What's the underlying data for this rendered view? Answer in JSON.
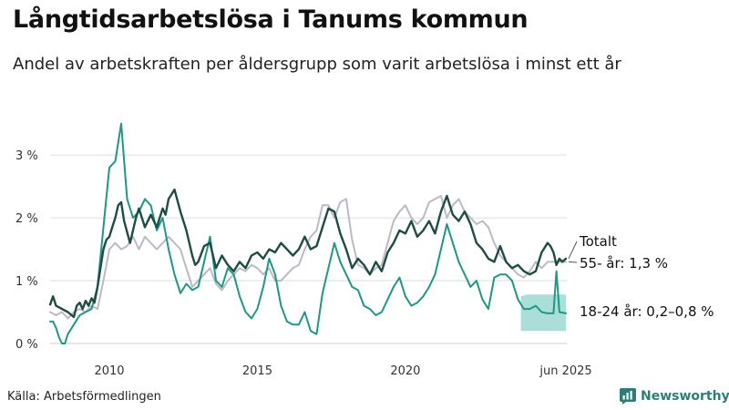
{
  "title": "Långtidsarbetslösa i Tanums kommun",
  "subtitle": "Andel av arbetskraften per åldersgrupp som varit arbetslösa i minst ett år",
  "source": "Källa: Arbetsförmedlingen",
  "brand": "Newsworthy",
  "colors": {
    "totalt": "#1e4d43",
    "age55": "#bdb8c6",
    "age1824": "#1a9a86",
    "band": "#8fd3cb",
    "grid": "#dddddd",
    "brand": "#2a8079"
  },
  "chart_data": {
    "type": "line",
    "ylim": [
      0,
      3.8
    ],
    "xlim": [
      2008.0,
      2025.45
    ],
    "yticks": [
      {
        "value": 0,
        "label": "0 %"
      },
      {
        "value": 1,
        "label": "1 %"
      },
      {
        "value": 2,
        "label": "2 %"
      },
      {
        "value": 3,
        "label": "3 %"
      }
    ],
    "xticks": [
      {
        "value": 2010,
        "label": "2010"
      },
      {
        "value": 2015,
        "label": "2015"
      },
      {
        "value": 2020,
        "label": "2020"
      },
      {
        "value": 2025.42,
        "label": "jun 2025"
      }
    ],
    "grid": true,
    "series": [
      {
        "key": "totalt",
        "name": "Totalt",
        "end_label": "Totalt",
        "x": [
          2008.0,
          2008.1,
          2008.2,
          2008.4,
          2008.6,
          2008.8,
          2008.9,
          2009.0,
          2009.1,
          2009.2,
          2009.3,
          2009.4,
          2009.5,
          2009.6,
          2009.8,
          2009.9,
          2010.0,
          2010.1,
          2010.2,
          2010.3,
          2010.4,
          2010.5,
          2010.7,
          2010.9,
          2011.0,
          2011.2,
          2011.4,
          2011.6,
          2011.8,
          2011.9,
          2012.0,
          2012.2,
          2012.4,
          2012.6,
          2012.8,
          2012.9,
          2013.0,
          2013.2,
          2013.4,
          2013.6,
          2013.8,
          2014.0,
          2014.2,
          2014.4,
          2014.6,
          2014.8,
          2015.0,
          2015.2,
          2015.4,
          2015.6,
          2015.8,
          2016.0,
          2016.2,
          2016.4,
          2016.6,
          2016.8,
          2017.0,
          2017.2,
          2017.4,
          2017.6,
          2017.8,
          2018.0,
          2018.2,
          2018.4,
          2018.6,
          2018.8,
          2019.0,
          2019.2,
          2019.4,
          2019.6,
          2019.8,
          2020.0,
          2020.2,
          2020.4,
          2020.6,
          2020.8,
          2021.0,
          2021.2,
          2021.4,
          2021.6,
          2021.8,
          2022.0,
          2022.2,
          2022.4,
          2022.6,
          2022.8,
          2023.0,
          2023.2,
          2023.4,
          2023.6,
          2023.8,
          2024.0,
          2024.2,
          2024.4,
          2024.6,
          2024.8,
          2024.9,
          2025.0,
          2025.1,
          2025.2,
          2025.3,
          2025.42
        ],
        "y": [
          0.62,
          0.75,
          0.6,
          0.55,
          0.5,
          0.42,
          0.6,
          0.65,
          0.55,
          0.68,
          0.6,
          0.72,
          0.65,
          0.9,
          1.5,
          1.65,
          1.7,
          1.85,
          2.0,
          2.2,
          2.25,
          1.95,
          1.6,
          2.0,
          2.15,
          1.85,
          2.05,
          1.85,
          2.15,
          2.05,
          2.3,
          2.45,
          2.1,
          1.8,
          1.4,
          1.25,
          1.3,
          1.55,
          1.6,
          1.2,
          1.4,
          1.25,
          1.15,
          1.3,
          1.2,
          1.4,
          1.45,
          1.35,
          1.5,
          1.45,
          1.6,
          1.5,
          1.4,
          1.5,
          1.7,
          1.5,
          1.55,
          1.85,
          2.15,
          2.1,
          1.75,
          1.5,
          1.2,
          1.35,
          1.25,
          1.1,
          1.3,
          1.15,
          1.45,
          1.6,
          1.8,
          1.75,
          1.95,
          1.7,
          1.8,
          1.95,
          1.75,
          2.1,
          2.35,
          2.05,
          1.95,
          2.1,
          1.9,
          1.6,
          1.5,
          1.35,
          1.3,
          1.55,
          1.3,
          1.2,
          1.25,
          1.15,
          1.1,
          1.15,
          1.45,
          1.6,
          1.55,
          1.45,
          1.25,
          1.35,
          1.3,
          1.35
        ]
      },
      {
        "key": "age55",
        "name": "55- år",
        "end_label": "55- år: 1,3 %",
        "x": [
          2008.0,
          2008.2,
          2008.4,
          2008.6,
          2008.8,
          2009.0,
          2009.2,
          2009.4,
          2009.6,
          2009.8,
          2010.0,
          2010.2,
          2010.4,
          2010.6,
          2010.8,
          2011.0,
          2011.2,
          2011.4,
          2011.6,
          2011.8,
          2012.0,
          2012.2,
          2012.4,
          2012.6,
          2012.8,
          2013.0,
          2013.2,
          2013.4,
          2013.6,
          2013.8,
          2014.0,
          2014.2,
          2014.4,
          2014.6,
          2014.8,
          2015.0,
          2015.2,
          2015.4,
          2015.6,
          2015.8,
          2016.0,
          2016.2,
          2016.4,
          2016.6,
          2016.8,
          2017.0,
          2017.2,
          2017.4,
          2017.6,
          2017.8,
          2018.0,
          2018.2,
          2018.4,
          2018.6,
          2018.8,
          2019.0,
          2019.2,
          2019.4,
          2019.6,
          2019.8,
          2020.0,
          2020.2,
          2020.4,
          2020.6,
          2020.8,
          2021.0,
          2021.2,
          2021.4,
          2021.6,
          2021.8,
          2022.0,
          2022.2,
          2022.4,
          2022.6,
          2022.8,
          2023.0,
          2023.2,
          2023.4,
          2023.6,
          2023.8,
          2024.0,
          2024.2,
          2024.4,
          2024.6,
          2024.8,
          2025.0,
          2025.2,
          2025.42
        ],
        "y": [
          0.5,
          0.45,
          0.5,
          0.4,
          0.5,
          0.55,
          0.5,
          0.6,
          0.55,
          1.0,
          1.5,
          1.6,
          1.5,
          1.55,
          1.7,
          1.5,
          1.7,
          1.6,
          1.5,
          1.6,
          1.7,
          1.6,
          1.5,
          1.2,
          0.9,
          1.0,
          1.1,
          1.2,
          0.95,
          0.85,
          1.0,
          1.1,
          1.2,
          1.15,
          1.25,
          1.2,
          1.1,
          1.2,
          1.0,
          1.0,
          1.1,
          1.2,
          1.25,
          1.5,
          1.7,
          1.8,
          2.2,
          2.2,
          2.0,
          2.25,
          2.3,
          1.65,
          1.25,
          1.2,
          1.1,
          1.2,
          1.25,
          1.6,
          1.95,
          2.1,
          2.2,
          2.0,
          1.9,
          2.0,
          2.25,
          2.3,
          2.35,
          2.0,
          2.2,
          2.3,
          2.1,
          2.0,
          1.9,
          1.95,
          1.85,
          1.6,
          1.4,
          1.3,
          1.2,
          1.1,
          1.05,
          1.15,
          1.3,
          1.2,
          1.3,
          1.3,
          1.3,
          1.3
        ]
      },
      {
        "key": "age1824",
        "name": "18-24 år",
        "end_label": "18-24 år: 0,2–0,8 %",
        "x": [
          2008.0,
          2008.1,
          2008.2,
          2008.3,
          2008.4,
          2008.5,
          2008.6,
          2008.8,
          2009.0,
          2009.2,
          2009.4,
          2009.6,
          2009.8,
          2010.0,
          2010.2,
          2010.4,
          2010.6,
          2010.8,
          2011.0,
          2011.2,
          2011.4,
          2011.6,
          2011.8,
          2012.0,
          2012.2,
          2012.4,
          2012.6,
          2012.8,
          2013.0,
          2013.2,
          2013.4,
          2013.6,
          2013.8,
          2014.0,
          2014.2,
          2014.4,
          2014.6,
          2014.8,
          2015.0,
          2015.2,
          2015.4,
          2015.6,
          2015.8,
          2016.0,
          2016.2,
          2016.4,
          2016.6,
          2016.8,
          2017.0,
          2017.2,
          2017.4,
          2017.6,
          2017.8,
          2018.0,
          2018.2,
          2018.4,
          2018.6,
          2018.8,
          2019.0,
          2019.2,
          2019.4,
          2019.6,
          2019.8,
          2020.0,
          2020.2,
          2020.4,
          2020.6,
          2020.8,
          2021.0,
          2021.2,
          2021.4,
          2021.6,
          2021.8,
          2022.0,
          2022.2,
          2022.4,
          2022.6,
          2022.8,
          2023.0,
          2023.2,
          2023.4,
          2023.6,
          2023.8,
          2024.0,
          2024.2,
          2024.4,
          2024.6,
          2024.8,
          2024.9,
          2025.0,
          2025.1,
          2025.2,
          2025.42
        ],
        "y": [
          0.35,
          0.35,
          0.25,
          0.1,
          0.0,
          0.0,
          0.15,
          0.3,
          0.45,
          0.5,
          0.55,
          0.9,
          1.85,
          2.8,
          2.9,
          3.5,
          2.3,
          2.0,
          2.1,
          2.3,
          2.2,
          1.8,
          2.0,
          1.5,
          1.1,
          0.8,
          0.95,
          0.85,
          0.9,
          1.3,
          1.7,
          1.0,
          0.9,
          1.2,
          1.1,
          0.75,
          0.5,
          0.4,
          0.55,
          0.9,
          1.35,
          1.1,
          0.6,
          0.35,
          0.3,
          0.3,
          0.5,
          0.2,
          0.15,
          0.8,
          1.2,
          1.6,
          1.3,
          1.1,
          0.9,
          0.85,
          0.6,
          0.55,
          0.45,
          0.5,
          0.7,
          0.9,
          1.05,
          0.75,
          0.6,
          0.65,
          0.75,
          0.9,
          1.1,
          1.5,
          1.9,
          1.6,
          1.3,
          1.1,
          0.9,
          1.0,
          0.7,
          0.55,
          1.05,
          1.1,
          1.1,
          1.0,
          0.7,
          0.55,
          0.55,
          0.6,
          0.5,
          0.48,
          0.48,
          0.48,
          1.15,
          0.5,
          0.48
        ]
      }
    ],
    "band": {
      "series": "age1824",
      "x": [
        2023.9,
        2024.1,
        2024.3,
        2024.5,
        2024.7,
        2024.8,
        2024.9,
        2025.0,
        2025.1,
        2025.2,
        2025.42
      ],
      "low": [
        0.2,
        0.2,
        0.2,
        0.2,
        0.2,
        0.2,
        0.2,
        0.2,
        0.2,
        0.2,
        0.2
      ],
      "high": [
        0.75,
        0.78,
        0.78,
        0.78,
        0.78,
        0.78,
        0.78,
        0.78,
        0.78,
        0.78,
        0.78
      ]
    }
  }
}
